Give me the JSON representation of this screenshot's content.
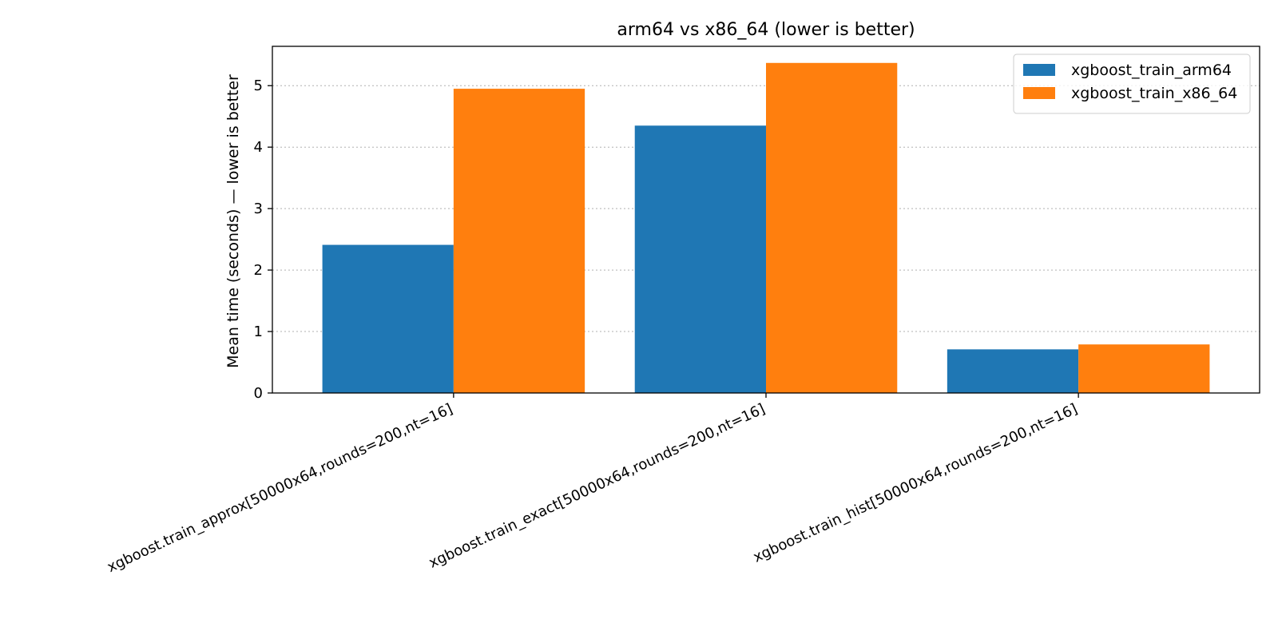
{
  "chart_data": {
    "type": "bar",
    "title": "arm64 vs x86_64 (lower is better)",
    "xlabel": "",
    "ylabel": "Mean time (seconds) — lower is better",
    "categories": [
      "xgboost.train_approx[50000x64,rounds=200,nt=16]",
      "xgboost.train_exact[50000x64,rounds=200,nt=16]",
      "xgboost.train_hist[50000x64,rounds=200,nt=16]"
    ],
    "series": [
      {
        "name": "xgboost_train_arm64",
        "color": "#1f77b4",
        "values": [
          2.41,
          4.35,
          0.71
        ]
      },
      {
        "name": "xgboost_train_x86_64",
        "color": "#ff7f0e",
        "values": [
          4.95,
          5.37,
          0.79
        ]
      }
    ],
    "ylim": [
      0,
      5.64
    ],
    "yticks": [
      0,
      1,
      2,
      3,
      4,
      5
    ],
    "ytick_labels": [
      "0",
      "1",
      "2",
      "3",
      "4",
      "5"
    ],
    "grid": "y-dotted",
    "legend_position": "top-right"
  }
}
